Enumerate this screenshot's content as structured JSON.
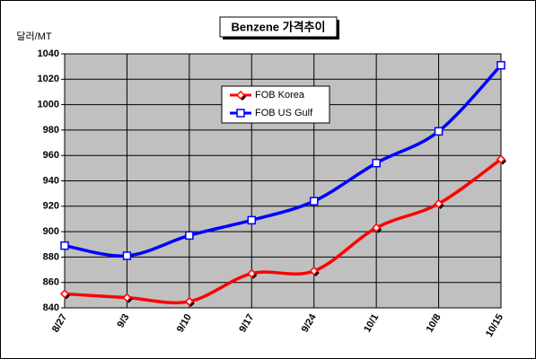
{
  "chart_data": {
    "type": "line",
    "title": "Benzene 가격추이",
    "y_label": "달러/MT",
    "categories": [
      "8/27",
      "9/3",
      "9/10",
      "9/17",
      "9/24",
      "10/1",
      "10/8",
      "10/15"
    ],
    "series": [
      {
        "name": "FOB Korea",
        "color": "#ff0000",
        "values": [
          851,
          848,
          845,
          867,
          869,
          903,
          922,
          957
        ]
      },
      {
        "name": "FOB US Gulf",
        "color": "#0000ff",
        "values": [
          889,
          881,
          897,
          909,
          924,
          954,
          979,
          1031
        ]
      }
    ],
    "ylim": [
      840,
      1040
    ],
    "yticks": [
      840,
      860,
      880,
      900,
      920,
      940,
      960,
      980,
      1000,
      1020,
      1040
    ],
    "grid": true,
    "plot_background": "#c0c0c0"
  }
}
